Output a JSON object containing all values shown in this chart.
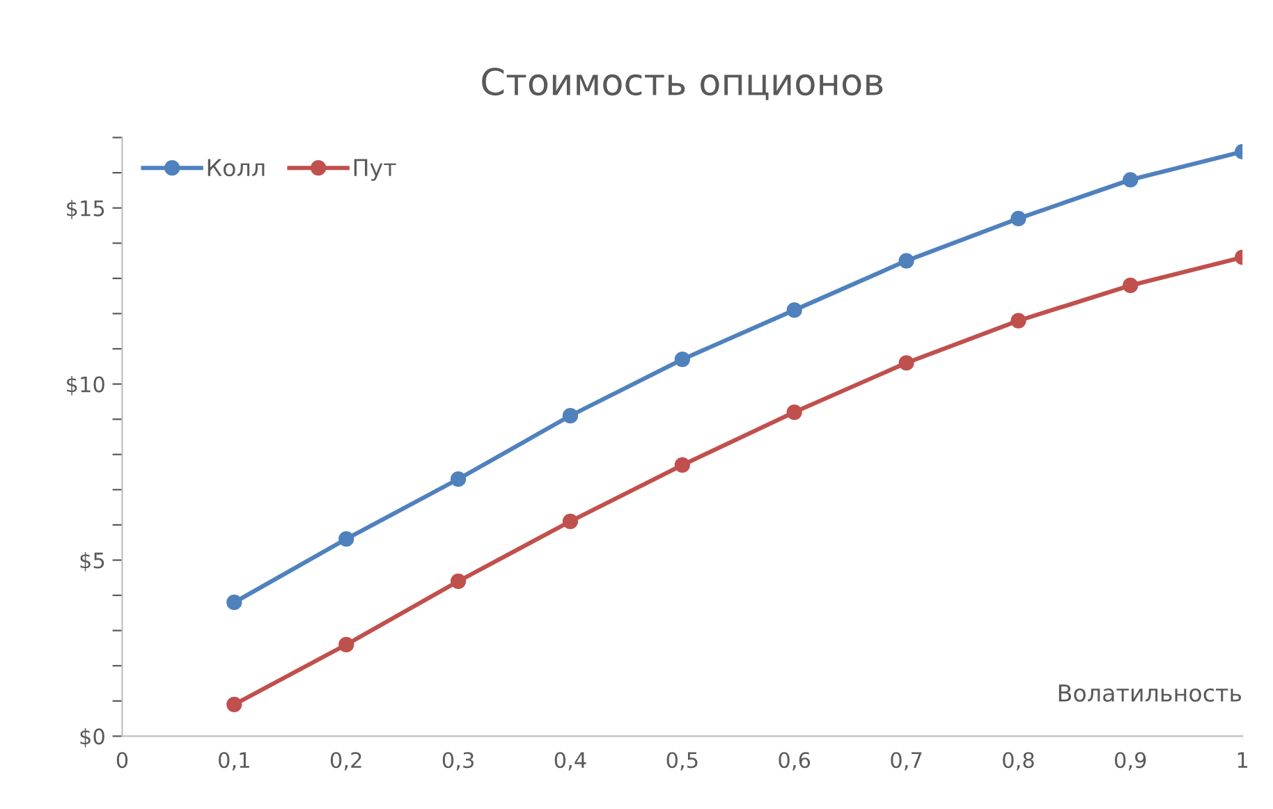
{
  "chart_data": {
    "type": "line",
    "title": "Стоимость опционов",
    "xlabel": "Волатильность",
    "x": [
      0.1,
      0.2,
      0.3,
      0.4,
      0.5,
      0.6,
      0.7,
      0.8,
      0.9,
      1
    ],
    "series": [
      {
        "name": "Колл",
        "color": "#4f81bd",
        "values": [
          3.8,
          5.6,
          7.3,
          9.1,
          10.7,
          12.1,
          13.5,
          14.7,
          15.8,
          16.6
        ]
      },
      {
        "name": "Пут",
        "color": "#c0504d",
        "values": [
          0.9,
          2.6,
          4.4,
          6.1,
          7.7,
          9.2,
          10.6,
          11.8,
          12.8,
          13.6
        ]
      }
    ],
    "xlim": [
      0,
      1
    ],
    "xticks": [
      0,
      {
        "value": 0.1,
        "label": "0,1"
      },
      {
        "value": 0.2,
        "label": "0,2"
      },
      {
        "value": 0.3,
        "label": "0,3"
      },
      {
        "value": 0.4,
        "label": "0,4"
      },
      {
        "value": 0.5,
        "label": "0,5"
      },
      {
        "value": 0.6,
        "label": "0,6"
      },
      {
        "value": 0.7,
        "label": "0,7"
      },
      {
        "value": 0.8,
        "label": "0,8"
      },
      {
        "value": 0.9,
        "label": "0,9"
      },
      1
    ],
    "ylim": [
      0,
      17
    ],
    "yticks": [
      {
        "value": 0,
        "label": "$0"
      },
      {
        "value": 1,
        "label": null
      },
      {
        "value": 2,
        "label": null
      },
      {
        "value": 3,
        "label": null
      },
      {
        "value": 4,
        "label": null
      },
      {
        "value": 5,
        "label": "$5"
      },
      {
        "value": 6,
        "label": null
      },
      {
        "value": 7,
        "label": null
      },
      {
        "value": 8,
        "label": null
      },
      {
        "value": 9,
        "label": null
      },
      {
        "value": 10,
        "label": "$10"
      },
      {
        "value": 11,
        "label": null
      },
      {
        "value": 12,
        "label": null
      },
      {
        "value": 13,
        "label": null
      },
      {
        "value": 14,
        "label": null
      },
      {
        "value": 15,
        "label": "$15"
      },
      {
        "value": 16,
        "label": null
      },
      {
        "value": 17,
        "label": null
      }
    ],
    "grid": false,
    "legend": "top left",
    "marker": "circle",
    "line_style": "solid"
  }
}
